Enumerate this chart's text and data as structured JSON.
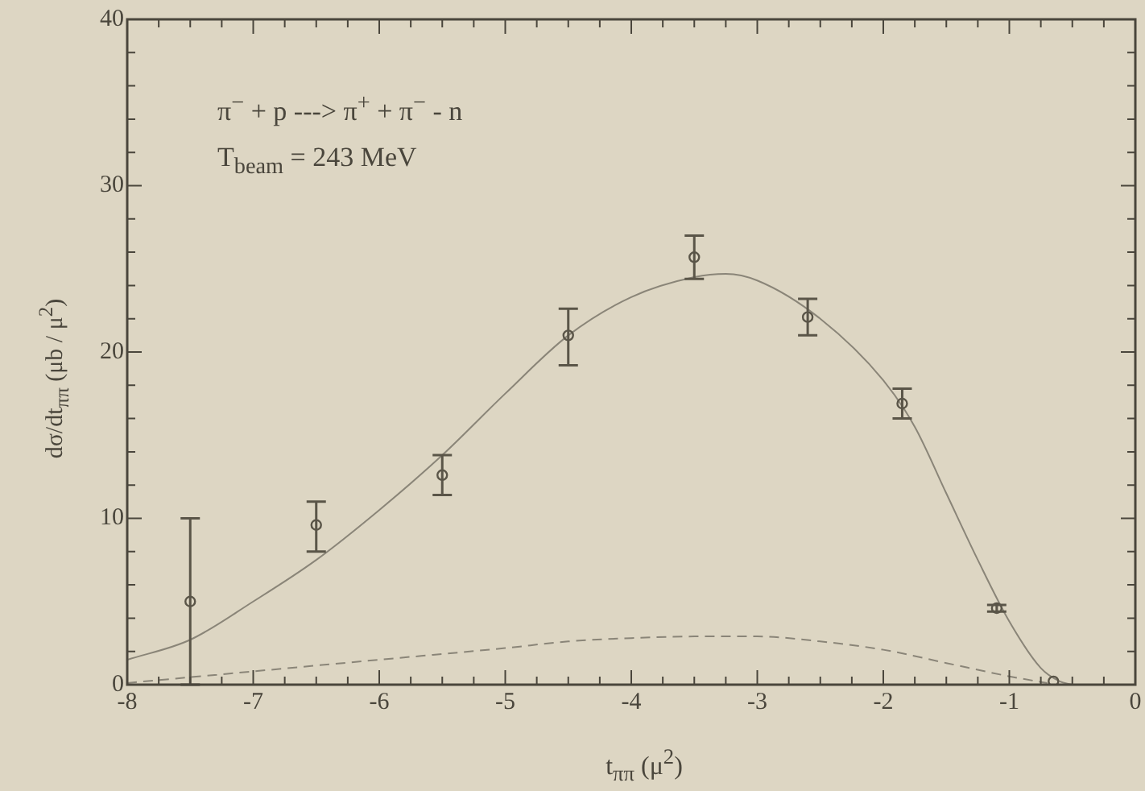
{
  "chart_data": {
    "type": "scatter",
    "xlabel": "t$_{ππ}$  (μ$^{2}$)",
    "ylabel": "dσ/dt$_{ππ}$  (μb / μ$^{2}$)",
    "annotations": [
      "π$^{−}$ + p ---> π$^{+}$ + π$^{−}$ - n",
      "T$_{beam}$ = 243 MeV"
    ],
    "xlim": [
      -8,
      0
    ],
    "ylim": [
      0,
      40
    ],
    "xticks": [
      -8,
      {
        "value": -7.75,
        "label": null
      },
      {
        "value": -7.5,
        "label": null
      },
      {
        "value": -7.25,
        "label": null
      },
      -7,
      {
        "value": -6.75,
        "label": null
      },
      {
        "value": -6.5,
        "label": null
      },
      {
        "value": -6.25,
        "label": null
      },
      -6,
      {
        "value": -5.75,
        "label": null
      },
      {
        "value": -5.5,
        "label": null
      },
      {
        "value": -5.25,
        "label": null
      },
      -5,
      {
        "value": -4.75,
        "label": null
      },
      {
        "value": -4.5,
        "label": null
      },
      {
        "value": -4.25,
        "label": null
      },
      -4,
      {
        "value": -3.75,
        "label": null
      },
      {
        "value": -3.5,
        "label": null
      },
      {
        "value": -3.25,
        "label": null
      },
      -3,
      {
        "value": -2.75,
        "label": null
      },
      {
        "value": -2.5,
        "label": null
      },
      {
        "value": -2.25,
        "label": null
      },
      -2,
      {
        "value": -1.75,
        "label": null
      },
      {
        "value": -1.5,
        "label": null
      },
      {
        "value": -1.25,
        "label": null
      },
      -1,
      {
        "value": -0.75,
        "label": null
      },
      {
        "value": -0.5,
        "label": null
      },
      {
        "value": -0.25,
        "label": null
      },
      0
    ],
    "yticks": [
      0,
      {
        "value": 2,
        "label": null
      },
      {
        "value": 4,
        "label": null
      },
      {
        "value": 6,
        "label": null
      },
      {
        "value": 8,
        "label": null
      },
      10,
      {
        "value": 12,
        "label": null
      },
      {
        "value": 14,
        "label": null
      },
      {
        "value": 16,
        "label": null
      },
      {
        "value": 18,
        "label": null
      },
      20,
      {
        "value": 22,
        "label": null
      },
      {
        "value": 24,
        "label": null
      },
      {
        "value": 26,
        "label": null
      },
      {
        "value": 28,
        "label": null
      },
      30,
      {
        "value": 32,
        "label": null
      },
      {
        "value": 34,
        "label": null
      },
      {
        "value": 36,
        "label": null
      },
      {
        "value": 38,
        "label": null
      },
      40
    ],
    "grid": false,
    "legend": false,
    "series": [
      {
        "color": "#5a5548",
        "marker": "circle",
        "x": [
          -7.5,
          -6.5,
          -5.5,
          -4.5,
          -3.5,
          -2.6,
          -1.85,
          -1.1,
          -0.65
        ],
        "values": [
          5.0,
          9.6,
          12.6,
          21.0,
          25.7,
          22.1,
          16.9,
          4.6,
          0.2
        ],
        "errors": [
          [
            0,
            10
          ],
          [
            8.0,
            11.0
          ],
          [
            11.4,
            13.8
          ],
          [
            19.2,
            22.6
          ],
          [
            24.4,
            27.0
          ],
          [
            21.0,
            23.2
          ],
          [
            16.0,
            17.8
          ],
          [
            4.4,
            4.8
          ],
          null
        ]
      },
      {
        "type": "line",
        "color": "#8a8578",
        "marker": "none",
        "line_style": "solid",
        "x": [
          -8,
          -7.5,
          -7,
          -6.5,
          -6,
          -5.5,
          -5,
          -4.5,
          -4,
          -3.5,
          -3.25,
          -3,
          -2.5,
          -2,
          -1.75,
          -1.5,
          -1.25,
          -1,
          -0.75,
          -0.6,
          -0.5
        ],
        "values": [
          1.5,
          2.7,
          5.0,
          7.5,
          10.5,
          13.8,
          17.5,
          21.0,
          23.3,
          24.5,
          24.7,
          24.3,
          22.0,
          18.3,
          15.5,
          11.5,
          7.5,
          3.8,
          1.0,
          0.2,
          0
        ]
      },
      {
        "type": "line",
        "color": "#8a8578",
        "marker": "none",
        "line_style": "dashed",
        "x": [
          -8,
          -7,
          -6,
          -5,
          -4.5,
          -4,
          -3.5,
          -3,
          -2.5,
          -2,
          -1.5,
          -1,
          -0.7
        ],
        "values": [
          0.1,
          0.8,
          1.5,
          2.2,
          2.6,
          2.8,
          2.9,
          2.9,
          2.6,
          2.1,
          1.3,
          0.5,
          0.1
        ]
      }
    ]
  }
}
